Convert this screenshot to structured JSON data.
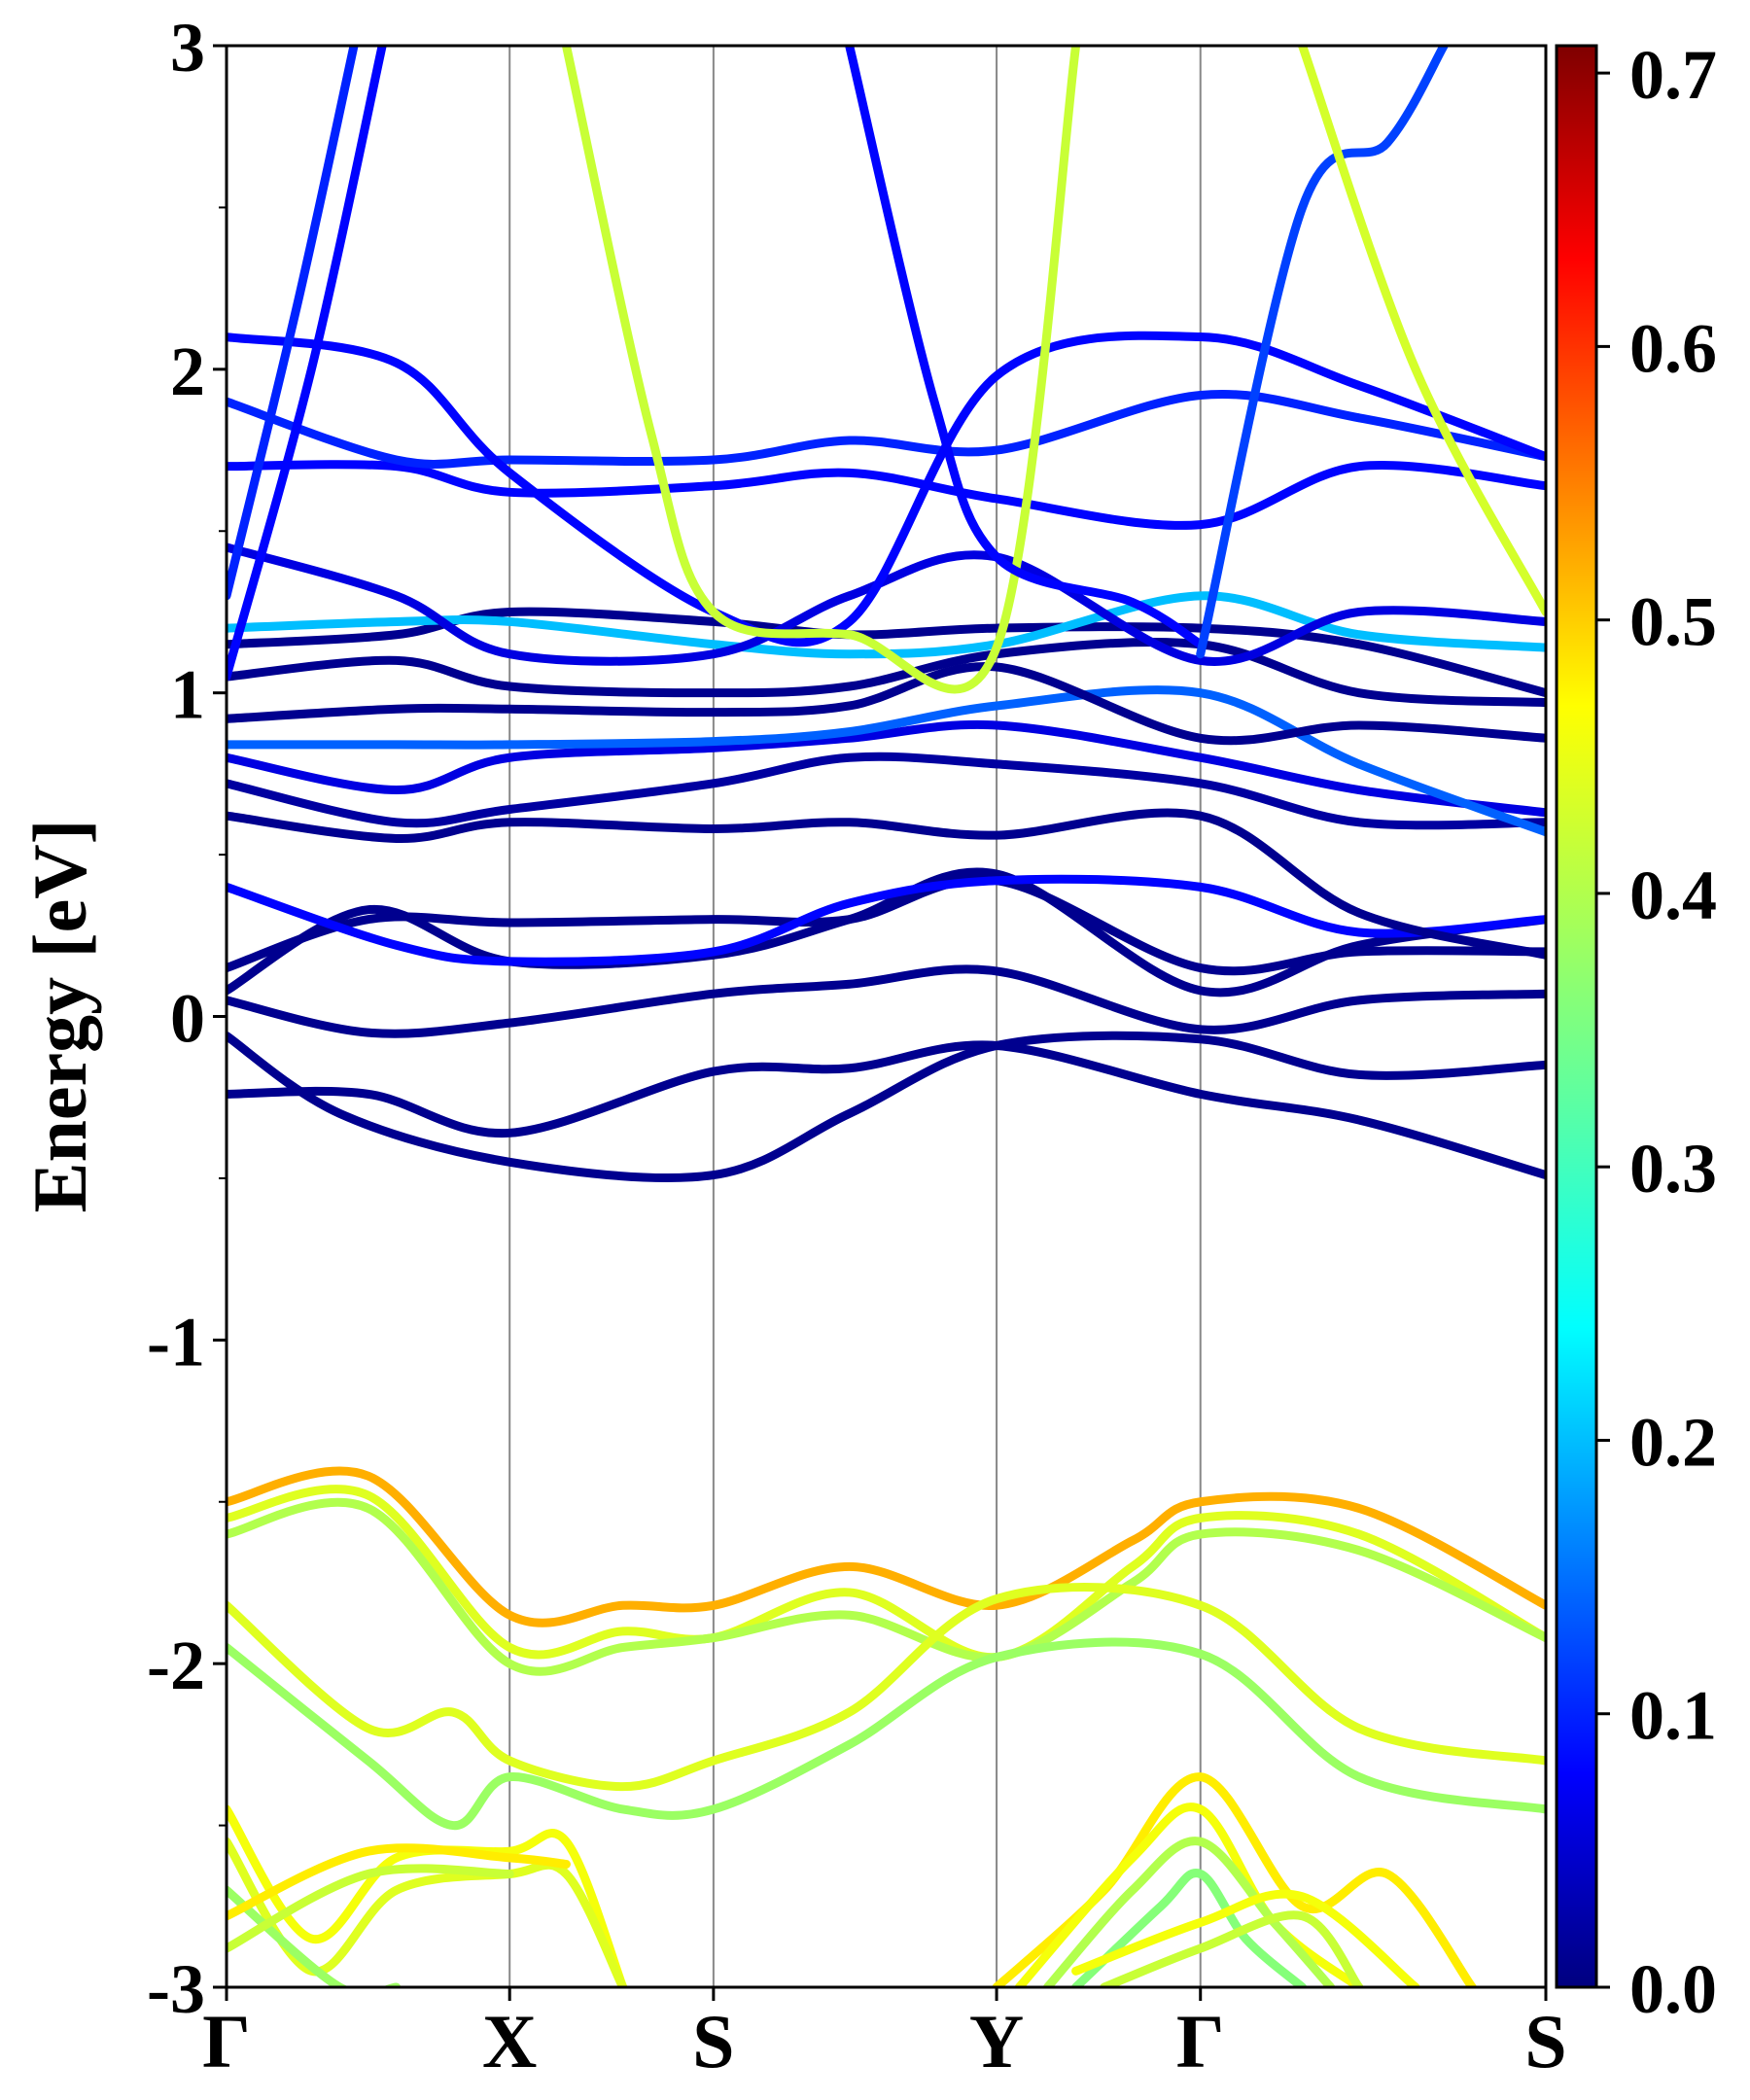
{
  "chart_data": {
    "type": "line",
    "title": "",
    "xlabel": "",
    "ylabel": "Energy [eV]",
    "ylim": [
      -3,
      3
    ],
    "y_ticks": [
      "3",
      "2",
      "1",
      "0",
      "-1",
      "-2",
      "-3"
    ],
    "k_points": [
      {
        "label": "Γ",
        "pos": 0.0
      },
      {
        "label": "X",
        "pos": 1.0
      },
      {
        "label": "S",
        "pos": 1.72
      },
      {
        "label": "Y",
        "pos": 2.72
      },
      {
        "label": "Γ",
        "pos": 3.44
      },
      {
        "label": "S",
        "pos": 4.66
      }
    ],
    "colorbar": {
      "ticks": [
        "0.0",
        "0.1",
        "0.2",
        "0.3",
        "0.4",
        "0.5",
        "0.6",
        "0.7"
      ],
      "range": [
        0.0,
        0.71
      ],
      "colormap": "jet"
    },
    "series": [
      {
        "x": [
          0,
          0.5,
          1.0,
          1.72,
          2.2,
          2.72,
          3.44,
          4.0,
          4.66
        ],
        "y": [
          -0.24,
          -0.24,
          -0.36,
          -0.17,
          -0.16,
          -0.09,
          -0.24,
          -0.32,
          -0.49
        ],
        "w": 0.01
      },
      {
        "x": [
          0,
          0.4,
          1.0,
          1.72,
          2.2,
          2.72,
          3.44,
          4.0,
          4.66
        ],
        "y": [
          -0.06,
          -0.3,
          -0.45,
          -0.49,
          -0.3,
          -0.09,
          -0.07,
          -0.18,
          -0.15
        ],
        "w": 0.01
      },
      {
        "x": [
          0,
          0.5,
          1.0,
          1.72,
          2.2,
          2.72,
          3.44,
          4.0,
          4.66
        ],
        "y": [
          0.05,
          -0.05,
          -0.02,
          0.07,
          0.1,
          0.14,
          -0.04,
          0.05,
          0.07
        ],
        "w": 0.01
      },
      {
        "x": [
          0,
          0.5,
          1.0,
          1.72,
          2.2,
          2.72,
          3.44,
          4.0,
          4.66
        ],
        "y": [
          0.15,
          0.3,
          0.29,
          0.3,
          0.3,
          0.42,
          0.15,
          0.2,
          0.2
        ],
        "w": 0.01
      },
      {
        "x": [
          0,
          0.5,
          1.0,
          1.72,
          2.2,
          2.72,
          3.44,
          4.0,
          4.66
        ],
        "y": [
          0.08,
          0.33,
          0.17,
          0.19,
          0.3,
          0.44,
          0.08,
          0.22,
          0.3
        ],
        "w": 0.01
      },
      {
        "x": [
          0,
          0.6,
          1.0,
          1.72,
          2.2,
          2.72,
          3.44,
          4.0,
          4.66
        ],
        "y": [
          0.4,
          0.22,
          0.17,
          0.2,
          0.35,
          0.42,
          0.4,
          0.26,
          0.3
        ],
        "w": 0.08
      },
      {
        "x": [
          0,
          0.6,
          1.0,
          1.72,
          2.2,
          2.72,
          3.44,
          4.0,
          4.66
        ],
        "y": [
          0.62,
          0.55,
          0.6,
          0.58,
          0.6,
          0.56,
          0.62,
          0.32,
          0.19
        ],
        "w": 0.01
      },
      {
        "x": [
          0,
          0.6,
          1.0,
          1.72,
          2.2,
          2.72,
          3.44,
          4.0,
          4.66
        ],
        "y": [
          0.72,
          0.6,
          0.64,
          0.72,
          0.8,
          0.78,
          0.72,
          0.6,
          0.6
        ],
        "w": 0.02
      },
      {
        "x": [
          0,
          0.6,
          1.0,
          1.72,
          2.2,
          2.72,
          3.44,
          4.0,
          4.66
        ],
        "y": [
          0.8,
          0.7,
          0.8,
          0.83,
          0.86,
          0.9,
          0.8,
          0.7,
          0.63
        ],
        "w": 0.06
      },
      {
        "x": [
          0,
          0.6,
          1.0,
          1.72,
          2.2,
          2.72,
          3.44,
          4.0,
          4.66
        ],
        "y": [
          0.84,
          0.84,
          0.84,
          0.85,
          0.88,
          0.96,
          1.0,
          0.78,
          0.57
        ],
        "w": 0.14
      },
      {
        "x": [
          0,
          0.6,
          1.0,
          1.72,
          2.2,
          2.72,
          3.44,
          4.0,
          4.66
        ],
        "y": [
          0.92,
          0.95,
          0.95,
          0.94,
          0.96,
          1.08,
          0.86,
          0.9,
          0.86
        ],
        "w": 0.01
      },
      {
        "x": [
          0,
          0.6,
          1.0,
          1.72,
          2.2,
          2.72,
          3.44,
          4.0,
          4.66
        ],
        "y": [
          1.05,
          1.1,
          1.02,
          1.0,
          1.02,
          1.12,
          1.15,
          1.0,
          0.97
        ],
        "w": 0.01
      },
      {
        "x": [
          0,
          0.6,
          1.0,
          1.72,
          2.2,
          2.72,
          3.44,
          4.0,
          4.66
        ],
        "y": [
          1.15,
          1.18,
          1.25,
          1.22,
          1.18,
          1.2,
          1.2,
          1.15,
          1.0
        ],
        "w": 0.01
      },
      {
        "x": [
          0,
          0.6,
          1.0,
          1.72,
          2.2,
          2.72,
          3.44,
          4.0,
          4.66
        ],
        "y": [
          1.2,
          1.22,
          1.22,
          1.15,
          1.12,
          1.15,
          1.3,
          1.18,
          1.14
        ],
        "w": 0.2
      },
      {
        "x": [
          0,
          0.6,
          1.0,
          1.72,
          2.2,
          2.72,
          3.44,
          4.0,
          4.66
        ],
        "y": [
          1.45,
          1.3,
          1.12,
          1.12,
          1.3,
          1.42,
          1.1,
          1.25,
          1.22
        ],
        "w": 0.06
      },
      {
        "x": [
          0,
          0.6,
          1.0,
          1.72,
          2.2,
          2.72,
          3.44,
          4.0,
          4.66
        ],
        "y": [
          1.7,
          1.7,
          1.62,
          1.64,
          1.68,
          1.6,
          1.52,
          1.7,
          1.64
        ],
        "w": 0.08
      },
      {
        "x": [
          0,
          0.6,
          1.0,
          1.72,
          2.2,
          2.72,
          3.44,
          4.0,
          4.66
        ],
        "y": [
          1.9,
          1.72,
          1.72,
          1.72,
          1.78,
          1.75,
          1.92,
          1.85,
          1.73
        ],
        "w": 0.1
      },
      {
        "x": [
          0,
          0.6,
          1.0,
          1.72,
          2.2,
          2.72,
          3.44,
          4.0,
          4.66
        ],
        "y": [
          2.1,
          2.02,
          1.68,
          1.25,
          1.22,
          1.98,
          2.1,
          1.95,
          1.73
        ],
        "w": 0.08
      },
      {
        "x": [
          0,
          0.25,
          0.45
        ],
        "y": [
          1.3,
          2.2,
          3.0
        ],
        "w": 0.1
      },
      {
        "x": [
          0,
          0.3,
          0.55
        ],
        "y": [
          1.05,
          2.0,
          3.0
        ],
        "w": 0.08
      },
      {
        "x": [
          1.2,
          1.5,
          1.72,
          2.2,
          2.72,
          3.0
        ],
        "y": [
          3.0,
          1.8,
          1.25,
          1.18,
          1.14,
          3.0
        ],
        "w": 0.42
      },
      {
        "x": [
          2.2,
          2.5,
          2.72,
          3.2,
          3.44
        ],
        "y": [
          3.0,
          1.9,
          1.42,
          1.28,
          1.15
        ],
        "w": 0.08
      },
      {
        "x": [
          3.44,
          3.8,
          4.1,
          4.3
        ],
        "y": [
          1.12,
          2.5,
          2.7,
          3.0
        ],
        "w": 0.12
      },
      {
        "x": [
          3.8,
          4.2,
          4.66
        ],
        "y": [
          3.0,
          2.0,
          1.25
        ],
        "w": 0.43
      },
      {
        "x": [
          0,
          0.5,
          1.0,
          1.4,
          1.72,
          2.2,
          2.72,
          3.2,
          3.44,
          4.0,
          4.66
        ],
        "y": [
          -1.5,
          -1.42,
          -1.85,
          -1.82,
          -1.82,
          -1.7,
          -1.82,
          -1.62,
          -1.5,
          -1.52,
          -1.82
        ],
        "w": 0.52
      },
      {
        "x": [
          0,
          0.5,
          1.0,
          1.4,
          1.72,
          2.2,
          2.72,
          3.2,
          3.44,
          4.0,
          4.66
        ],
        "y": [
          -1.55,
          -1.48,
          -1.95,
          -1.9,
          -1.92,
          -1.78,
          -1.98,
          -1.7,
          -1.55,
          -1.6,
          -1.92
        ],
        "w": 0.44
      },
      {
        "x": [
          0,
          0.5,
          1.0,
          1.4,
          1.72,
          2.2,
          2.72,
          3.2,
          3.44,
          4.0,
          4.66
        ],
        "y": [
          -1.6,
          -1.52,
          -2.0,
          -1.95,
          -1.92,
          -1.85,
          -1.98,
          -1.75,
          -1.6,
          -1.65,
          -1.92
        ],
        "w": 0.4
      },
      {
        "x": [
          0,
          0.5,
          0.8,
          1.0,
          1.4,
          1.72,
          2.2,
          2.72,
          3.44,
          4.0,
          4.66
        ],
        "y": [
          -1.82,
          -2.2,
          -2.15,
          -2.3,
          -2.38,
          -2.3,
          -2.15,
          -1.8,
          -1.82,
          -2.2,
          -2.3
        ],
        "w": 0.44
      },
      {
        "x": [
          0,
          0.5,
          0.8,
          1.0,
          1.4,
          1.72,
          2.2,
          2.72,
          3.44,
          4.0,
          4.66
        ],
        "y": [
          -1.95,
          -2.3,
          -2.5,
          -2.35,
          -2.45,
          -2.45,
          -2.25,
          -1.98,
          -1.97,
          -2.35,
          -2.45
        ],
        "w": 0.38
      },
      {
        "x": [
          0,
          0.3,
          0.6,
          1.0,
          1.2,
          1.4
        ],
        "y": [
          -2.45,
          -2.85,
          -2.6,
          -2.58,
          -2.55,
          -3.0
        ],
        "w": 0.46
      },
      {
        "x": [
          0,
          0.3,
          0.6,
          1.0,
          1.2,
          1.4
        ],
        "y": [
          -2.55,
          -2.95,
          -2.7,
          -2.65,
          -2.65,
          -3.0
        ],
        "w": 0.44
      },
      {
        "x": [
          0,
          0.4,
          0.6
        ],
        "y": [
          -2.7,
          -3.0,
          -3.0
        ],
        "w": 0.38
      },
      {
        "x": [
          0,
          0.5,
          1.0,
          1.2
        ],
        "y": [
          -2.78,
          -2.58,
          -2.6,
          -2.62
        ],
        "w": 0.48
      },
      {
        "x": [
          0,
          0.5,
          1.0
        ],
        "y": [
          -2.88,
          -2.65,
          -2.65
        ],
        "w": 0.42
      },
      {
        "x": [
          2.72,
          3.1,
          3.44,
          3.8,
          4.1,
          4.4
        ],
        "y": [
          -3.0,
          -2.7,
          -2.35,
          -2.75,
          -2.65,
          -3.0
        ],
        "w": 0.48
      },
      {
        "x": [
          2.8,
          3.2,
          3.44,
          3.7,
          4.0
        ],
        "y": [
          -3.0,
          -2.6,
          -2.45,
          -2.8,
          -3.0
        ],
        "w": 0.46
      },
      {
        "x": [
          2.9,
          3.2,
          3.44,
          3.7,
          3.9
        ],
        "y": [
          -3.0,
          -2.7,
          -2.55,
          -2.8,
          -3.0
        ],
        "w": 0.4
      },
      {
        "x": [
          3.0,
          3.3,
          3.44,
          3.6,
          3.8
        ],
        "y": [
          -3.0,
          -2.75,
          -2.65,
          -2.85,
          -3.0
        ],
        "w": 0.36
      },
      {
        "x": [
          3.0,
          3.44,
          3.8,
          4.2
        ],
        "y": [
          -2.95,
          -2.8,
          -2.72,
          -3.0
        ],
        "w": 0.46
      },
      {
        "x": [
          3.1,
          3.44,
          3.8,
          4.0
        ],
        "y": [
          -3.0,
          -2.88,
          -2.78,
          -3.0
        ],
        "w": 0.42
      }
    ]
  }
}
